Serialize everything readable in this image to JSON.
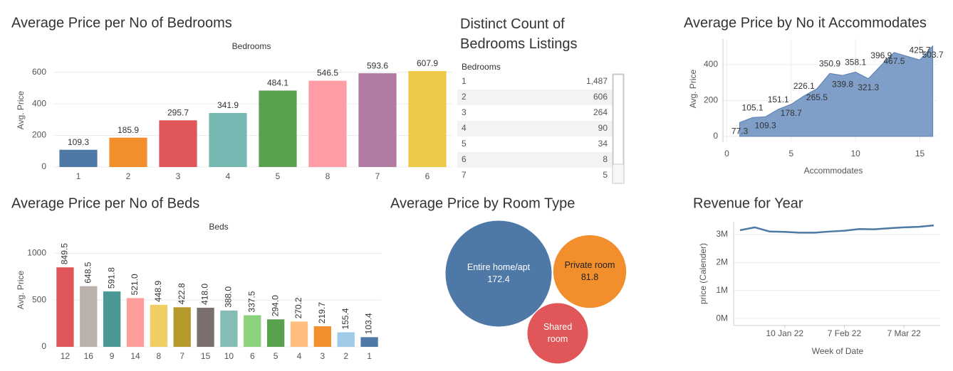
{
  "chart_data": [
    {
      "type": "bar",
      "title": "Average Price per No of Bedrooms",
      "x_label": "Bedrooms",
      "y_label": "Avg. Price",
      "categories": [
        "1",
        "2",
        "3",
        "4",
        "5",
        "8",
        "7",
        "6"
      ],
      "values": [
        109.3,
        185.9,
        295.7,
        341.9,
        484.1,
        546.5,
        593.6,
        607.9
      ],
      "colors": [
        "#4e79a7",
        "#f28e2b",
        "#e15759",
        "#76b7b2",
        "#59a14f",
        "#ff9da7",
        "#b07aa1",
        "#edc948"
      ],
      "ylim": [
        0,
        720
      ],
      "yticks": [
        0,
        200,
        400,
        600
      ],
      "grid": true
    },
    {
      "type": "table",
      "title": "Distinct Count of Bedrooms Listings",
      "header": [
        "Bedrooms"
      ],
      "rows": [
        [
          "1",
          "1,487"
        ],
        [
          "2",
          "606"
        ],
        [
          "3",
          "264"
        ],
        [
          "4",
          "90"
        ],
        [
          "5",
          "34"
        ],
        [
          "6",
          "8"
        ],
        [
          "7",
          "5"
        ]
      ]
    },
    {
      "type": "area",
      "title": "Average Price by No it Accommodates",
      "x_label": "Accommodates",
      "y_label": "Avg. Price",
      "x": [
        1,
        2,
        3,
        4,
        5,
        6,
        7,
        8,
        9,
        10,
        11,
        12,
        13,
        15,
        16
      ],
      "values": [
        77.3,
        105.1,
        109.3,
        151.1,
        178.7,
        226.1,
        265.5,
        350.9,
        339.8,
        358.1,
        321.3,
        396.9,
        467.5,
        425.7,
        503.7
      ],
      "color": "#7f9fc8",
      "line_color": "#5b7fae",
      "xlim": [
        -0.3,
        16.3
      ],
      "xticks": [
        0,
        5,
        10,
        15
      ],
      "ylim": [
        -32,
        542
      ],
      "yticks": [
        0,
        200,
        400
      ],
      "grid": true
    },
    {
      "type": "bar",
      "title": "Average Price per No of Beds",
      "x_label": "Beds",
      "y_label": "Avg. Price",
      "categories": [
        "12",
        "16",
        "9",
        "14",
        "8",
        "7",
        "15",
        "10",
        "6",
        "5",
        "4",
        "3",
        "2",
        "1"
      ],
      "values": [
        849.5,
        648.5,
        591.8,
        521.0,
        448.9,
        422.8,
        418.0,
        388.0,
        337.5,
        294.0,
        270.2,
        219.7,
        155.4,
        103.4
      ],
      "value_labels": [
        "849.5",
        "648.5",
        "591.8",
        "521.0",
        "448.9",
        "422.8",
        "418.0",
        "388.0",
        "337.5",
        "294.0",
        "270.2",
        "219.7",
        "155.4",
        "103.4"
      ],
      "colors": [
        "#e15759",
        "#bab0ac",
        "#499894",
        "#ff9d9a",
        "#f1ce63",
        "#b6992d",
        "#79706e",
        "#86bcb6",
        "#8cd17d",
        "#59a14f",
        "#ffbe7d",
        "#f28e2b",
        "#a0cbe8",
        "#4e79a7"
      ],
      "ylim": [
        0,
        1200
      ],
      "yticks": [
        0,
        500,
        1000
      ],
      "grid": true,
      "rotate_labels": true
    },
    {
      "type": "bubble",
      "title": "Average Price by Room Type",
      "categories": [
        "Entire home/apt",
        "Private room",
        "Shared room"
      ],
      "values": [
        172.4,
        81.8,
        56.7
      ],
      "value_labels": [
        "172.4",
        "81.8",
        null
      ],
      "colors": [
        "#4e79a7",
        "#f28e2b",
        "#e15759"
      ]
    },
    {
      "type": "line",
      "title": "Revenue for Year",
      "x_label": "Week of Date",
      "y_label": "price (Calender)",
      "x": [
        "2021-12-20",
        "2021-12-27",
        "2022-01-03",
        "2022-01-10",
        "2022-01-17",
        "2022-01-24",
        "2022-01-31",
        "2022-02-07",
        "2022-02-14",
        "2022-02-21",
        "2022-02-28",
        "2022-03-07",
        "2022-03-14",
        "2022-03-21"
      ],
      "values": [
        3150000,
        3250000,
        3100000,
        3090000,
        3060000,
        3060000,
        3100000,
        3130000,
        3190000,
        3180000,
        3220000,
        3250000,
        3270000,
        3320000
      ],
      "color": "#4e79a7",
      "xlim": [
        "2021-12-17",
        "2022-03-24"
      ],
      "xticks": [
        {
          "value": "2022-01-10",
          "label": "10 Jan 22"
        },
        {
          "value": "2022-02-07",
          "label": "7 Feb 22"
        },
        {
          "value": "2022-03-07",
          "label": "7 Mar 22"
        }
      ],
      "ylim": [
        -250000,
        3450000
      ],
      "yticks": [
        {
          "value": 0,
          "label": "0M"
        },
        {
          "value": 1000000,
          "label": "1M"
        },
        {
          "value": 2000000,
          "label": "2M"
        },
        {
          "value": 3000000,
          "label": "3M"
        }
      ],
      "grid": true
    }
  ]
}
